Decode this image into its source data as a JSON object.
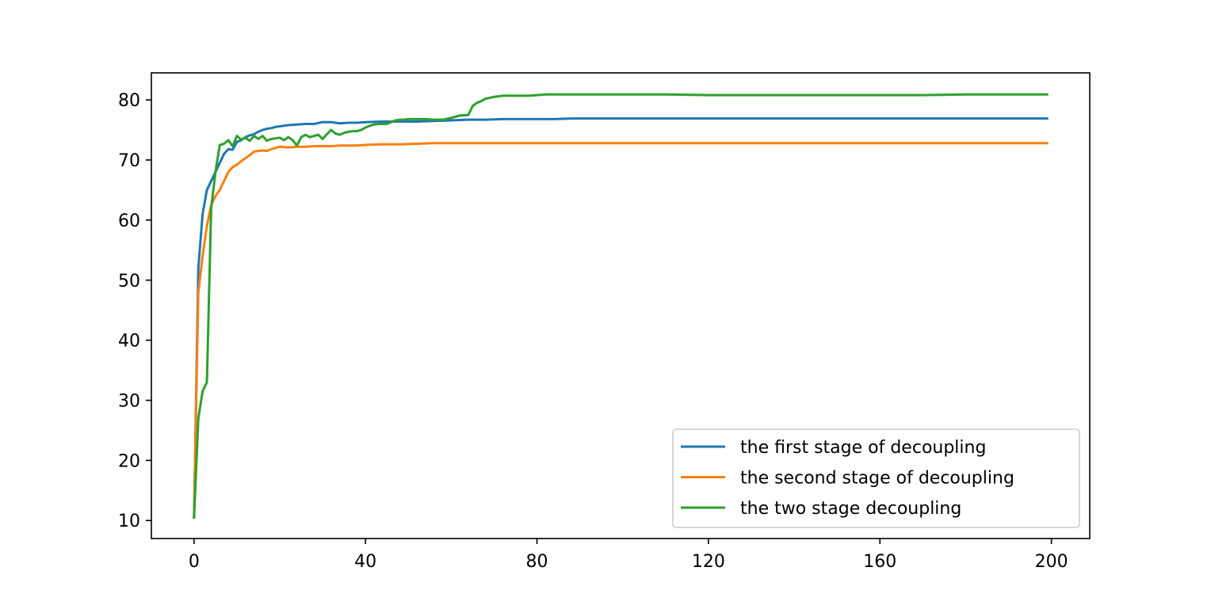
{
  "chart_data": {
    "type": "line",
    "title": "",
    "xlabel": "",
    "ylabel": "",
    "xlim": [
      -9.95,
      208.95
    ],
    "ylim": [
      7.0,
      84.5
    ],
    "xticks": [
      0,
      40,
      80,
      120,
      160,
      200
    ],
    "yticks": [
      10,
      20,
      30,
      40,
      50,
      60,
      70,
      80
    ],
    "grid": false,
    "legend_position": "lower-right",
    "series": [
      {
        "name": "the first stage of decoupling",
        "color": "#1f77b4",
        "points": [
          [
            0,
            10.5
          ],
          [
            1,
            52
          ],
          [
            2,
            61
          ],
          [
            3,
            65
          ],
          [
            4,
            66.5
          ],
          [
            5,
            68
          ],
          [
            6,
            69.5
          ],
          [
            7,
            71
          ],
          [
            8,
            71.8
          ],
          [
            9,
            71.7
          ],
          [
            10,
            73
          ],
          [
            11,
            73.3
          ],
          [
            12,
            73.8
          ],
          [
            13,
            74.1
          ],
          [
            14,
            74.3
          ],
          [
            15,
            74.7
          ],
          [
            16,
            75
          ],
          [
            17,
            75.2
          ],
          [
            18,
            75.3
          ],
          [
            19,
            75.5
          ],
          [
            20,
            75.6
          ],
          [
            22,
            75.8
          ],
          [
            24,
            75.9
          ],
          [
            26,
            76
          ],
          [
            28,
            76
          ],
          [
            30,
            76.3
          ],
          [
            32,
            76.3
          ],
          [
            34,
            76.1
          ],
          [
            36,
            76.2
          ],
          [
            38,
            76.2
          ],
          [
            40,
            76.3
          ],
          [
            44,
            76.4
          ],
          [
            48,
            76.4
          ],
          [
            52,
            76.4
          ],
          [
            56,
            76.5
          ],
          [
            60,
            76.6
          ],
          [
            64,
            76.7
          ],
          [
            68,
            76.7
          ],
          [
            72,
            76.8
          ],
          [
            76,
            76.8
          ],
          [
            80,
            76.8
          ],
          [
            84,
            76.8
          ],
          [
            88,
            76.9
          ],
          [
            92,
            76.9
          ],
          [
            96,
            76.9
          ],
          [
            100,
            76.9
          ],
          [
            110,
            76.9
          ],
          [
            120,
            76.9
          ],
          [
            130,
            76.9
          ],
          [
            140,
            76.9
          ],
          [
            150,
            76.9
          ],
          [
            160,
            76.9
          ],
          [
            170,
            76.9
          ],
          [
            180,
            76.9
          ],
          [
            190,
            76.9
          ],
          [
            199,
            76.9
          ]
        ]
      },
      {
        "name": "the second stage of decoupling",
        "color": "#ff7f0e",
        "points": [
          [
            0,
            10.5
          ],
          [
            1,
            48
          ],
          [
            2,
            54
          ],
          [
            3,
            59
          ],
          [
            4,
            62.5
          ],
          [
            5,
            64
          ],
          [
            6,
            65
          ],
          [
            7,
            66.5
          ],
          [
            8,
            68
          ],
          [
            9,
            68.8
          ],
          [
            10,
            69.2
          ],
          [
            11,
            69.8
          ],
          [
            12,
            70.3
          ],
          [
            13,
            70.8
          ],
          [
            14,
            71.4
          ],
          [
            15,
            71.5
          ],
          [
            16,
            71.6
          ],
          [
            17,
            71.5
          ],
          [
            18,
            71.8
          ],
          [
            19,
            72
          ],
          [
            20,
            72.2
          ],
          [
            22,
            72.1
          ],
          [
            24,
            72.2
          ],
          [
            26,
            72.2
          ],
          [
            28,
            72.3
          ],
          [
            30,
            72.3
          ],
          [
            32,
            72.3
          ],
          [
            34,
            72.4
          ],
          [
            36,
            72.4
          ],
          [
            38,
            72.4
          ],
          [
            40,
            72.5
          ],
          [
            44,
            72.6
          ],
          [
            48,
            72.6
          ],
          [
            52,
            72.7
          ],
          [
            56,
            72.8
          ],
          [
            60,
            72.8
          ],
          [
            64,
            72.8
          ],
          [
            68,
            72.8
          ],
          [
            72,
            72.8
          ],
          [
            76,
            72.8
          ],
          [
            80,
            72.8
          ],
          [
            84,
            72.8
          ],
          [
            88,
            72.8
          ],
          [
            92,
            72.8
          ],
          [
            96,
            72.8
          ],
          [
            100,
            72.8
          ],
          [
            110,
            72.8
          ],
          [
            120,
            72.8
          ],
          [
            130,
            72.8
          ],
          [
            140,
            72.8
          ],
          [
            150,
            72.8
          ],
          [
            160,
            72.8
          ],
          [
            170,
            72.8
          ],
          [
            180,
            72.8
          ],
          [
            190,
            72.8
          ],
          [
            199,
            72.8
          ]
        ]
      },
      {
        "name": "the two stage decoupling",
        "color": "#2ca02c",
        "points": [
          [
            0,
            10.5
          ],
          [
            1,
            27
          ],
          [
            2,
            31.5
          ],
          [
            3,
            33
          ],
          [
            4,
            62
          ],
          [
            5,
            68
          ],
          [
            6,
            72.5
          ],
          [
            7,
            72.7
          ],
          [
            8,
            73.3
          ],
          [
            9,
            72.3
          ],
          [
            10,
            74
          ],
          [
            11,
            73.4
          ],
          [
            12,
            73.7
          ],
          [
            13,
            73.2
          ],
          [
            14,
            74
          ],
          [
            15,
            73.5
          ],
          [
            16,
            74
          ],
          [
            17,
            73.2
          ],
          [
            18,
            73.5
          ],
          [
            19,
            73.6
          ],
          [
            20,
            73.7
          ],
          [
            21,
            73.3
          ],
          [
            22,
            73.8
          ],
          [
            23,
            73.3
          ],
          [
            24,
            72.4
          ],
          [
            25,
            73.8
          ],
          [
            26,
            74.2
          ],
          [
            27,
            73.8
          ],
          [
            28,
            74
          ],
          [
            29,
            74.2
          ],
          [
            30,
            73.5
          ],
          [
            31,
            74.3
          ],
          [
            32,
            75
          ],
          [
            33,
            74.4
          ],
          [
            34,
            74.2
          ],
          [
            35,
            74.5
          ],
          [
            36,
            74.7
          ],
          [
            37,
            74.8
          ],
          [
            38,
            74.8
          ],
          [
            39,
            75
          ],
          [
            40,
            75.4
          ],
          [
            41,
            75.7
          ],
          [
            42,
            75.9
          ],
          [
            43,
            76
          ],
          [
            44,
            76
          ],
          [
            45,
            76
          ],
          [
            46,
            76.3
          ],
          [
            47,
            76.6
          ],
          [
            48,
            76.7
          ],
          [
            49,
            76.7
          ],
          [
            50,
            76.8
          ],
          [
            52,
            76.8
          ],
          [
            54,
            76.8
          ],
          [
            56,
            76.7
          ],
          [
            58,
            76.7
          ],
          [
            60,
            77
          ],
          [
            62,
            77.4
          ],
          [
            64,
            77.5
          ],
          [
            65,
            79
          ],
          [
            66,
            79.5
          ],
          [
            67,
            79.8
          ],
          [
            68,
            80.2
          ],
          [
            70,
            80.5
          ],
          [
            72,
            80.7
          ],
          [
            74,
            80.7
          ],
          [
            76,
            80.7
          ],
          [
            78,
            80.7
          ],
          [
            80,
            80.8
          ],
          [
            82,
            80.9
          ],
          [
            84,
            80.9
          ],
          [
            86,
            80.9
          ],
          [
            88,
            80.9
          ],
          [
            90,
            80.9
          ],
          [
            95,
            80.9
          ],
          [
            100,
            80.9
          ],
          [
            110,
            80.9
          ],
          [
            120,
            80.8
          ],
          [
            130,
            80.8
          ],
          [
            140,
            80.8
          ],
          [
            150,
            80.8
          ],
          [
            160,
            80.8
          ],
          [
            170,
            80.8
          ],
          [
            180,
            80.9
          ],
          [
            190,
            80.9
          ],
          [
            199,
            80.9
          ]
        ]
      }
    ]
  }
}
